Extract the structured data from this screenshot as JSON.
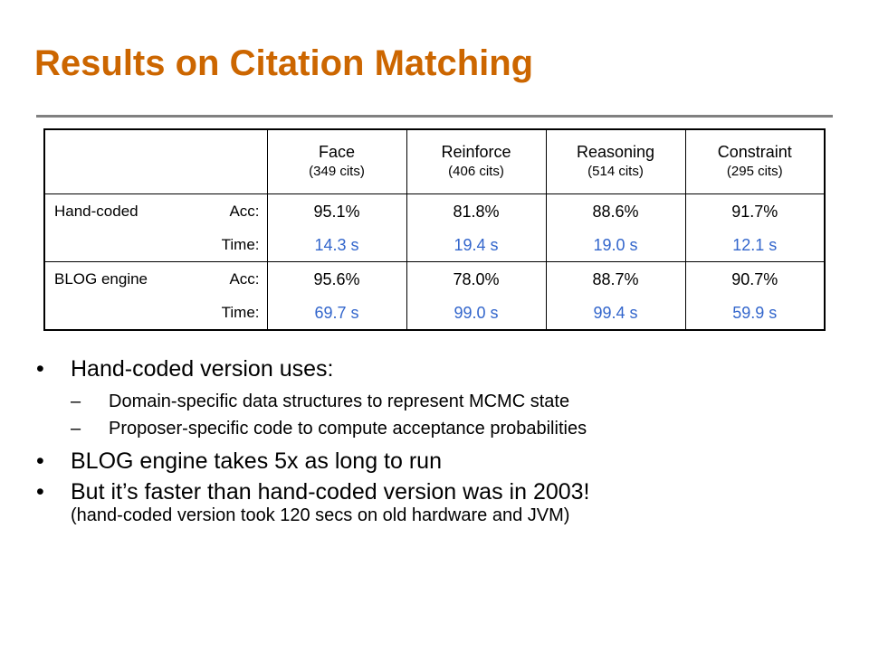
{
  "title": "Results on Citation Matching",
  "table": {
    "columns": [
      {
        "name": "Face",
        "sub": "(349 cits)"
      },
      {
        "name": "Reinforce",
        "sub": "(406 cits)"
      },
      {
        "name": "Reasoning",
        "sub": "(514 cits)"
      },
      {
        "name": "Constraint",
        "sub": "(295 cits)"
      }
    ],
    "rows": [
      {
        "system": "Hand-coded",
        "acc_label": "Acc:",
        "time_label": "Time:",
        "acc": [
          "95.1%",
          "81.8%",
          "88.6%",
          "91.7%"
        ],
        "time": [
          "14.3 s",
          "19.4 s",
          "19.0 s",
          "12.1 s"
        ]
      },
      {
        "system": "BLOG engine",
        "acc_label": "Acc:",
        "time_label": "Time:",
        "acc": [
          "95.6%",
          "78.0%",
          "88.7%",
          "90.7%"
        ],
        "time": [
          "69.7 s",
          "99.0 s",
          "99.4 s",
          "59.9 s"
        ]
      }
    ]
  },
  "bullets": [
    {
      "text": "Hand-coded version uses:",
      "subitems": [
        "Domain-specific data structures to represent MCMC state",
        "Proposer-specific code to compute acceptance probabilities"
      ]
    },
    {
      "text": "BLOG engine takes 5x as long to run"
    },
    {
      "text": "But it’s faster than hand-coded version was in 2003!",
      "note": "(hand-coded version took 120 secs on old hardware and JVM)"
    }
  ],
  "bullet_char": "•",
  "dash_char": "–",
  "colors": {
    "title": "#cc6600",
    "time_values": "#3366cc",
    "rule": "#808080"
  }
}
